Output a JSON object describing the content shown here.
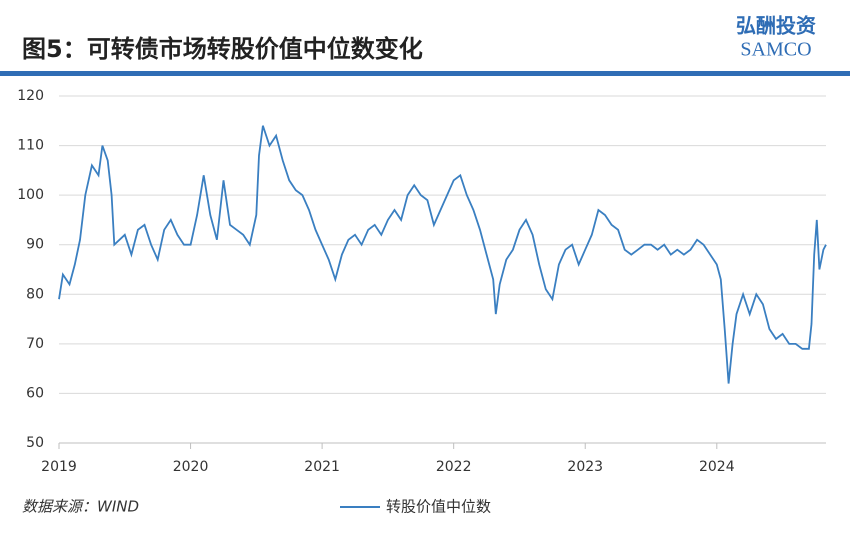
{
  "header": {
    "title": "图5：可转债市场转股价值中位数变化",
    "logo_cn": "弘酬投资",
    "logo_en": "SAMCO"
  },
  "source": "数据来源：WIND",
  "chart_data": {
    "type": "line",
    "x": [
      2019.0,
      2019.03,
      2019.08,
      2019.12,
      2019.16,
      2019.2,
      2019.25,
      2019.3,
      2019.33,
      2019.37,
      2019.4,
      2019.42,
      2019.5,
      2019.55,
      2019.6,
      2019.65,
      2019.7,
      2019.75,
      2019.8,
      2019.85,
      2019.9,
      2019.95,
      2020.0,
      2020.05,
      2020.1,
      2020.15,
      2020.2,
      2020.25,
      2020.3,
      2020.35,
      2020.4,
      2020.45,
      2020.5,
      2020.52,
      2020.55,
      2020.6,
      2020.65,
      2020.7,
      2020.75,
      2020.8,
      2020.85,
      2020.9,
      2020.95,
      2021.0,
      2021.05,
      2021.1,
      2021.15,
      2021.2,
      2021.25,
      2021.3,
      2021.35,
      2021.4,
      2021.45,
      2021.5,
      2021.55,
      2021.6,
      2021.65,
      2021.7,
      2021.75,
      2021.8,
      2021.85,
      2021.9,
      2021.95,
      2022.0,
      2022.05,
      2022.1,
      2022.15,
      2022.2,
      2022.25,
      2022.3,
      2022.32,
      2022.35,
      2022.4,
      2022.45,
      2022.5,
      2022.55,
      2022.6,
      2022.65,
      2022.7,
      2022.75,
      2022.8,
      2022.85,
      2022.9,
      2022.95,
      2023.0,
      2023.05,
      2023.1,
      2023.15,
      2023.2,
      2023.25,
      2023.3,
      2023.35,
      2023.4,
      2023.45,
      2023.5,
      2023.55,
      2023.6,
      2023.65,
      2023.7,
      2023.75,
      2023.8,
      2023.85,
      2023.9,
      2023.95,
      2024.0,
      2024.03,
      2024.06,
      2024.09,
      2024.12,
      2024.15,
      2024.2,
      2024.25,
      2024.3,
      2024.35,
      2024.4,
      2024.45,
      2024.5,
      2024.55,
      2024.6,
      2024.65,
      2024.7,
      2024.72,
      2024.74,
      2024.76,
      2024.78,
      2024.81,
      2024.83
    ],
    "series": [
      {
        "name": "转股价值中位数",
        "color": "#3a7fc1",
        "values": [
          79,
          84,
          82,
          86,
          91,
          100,
          106,
          104,
          110,
          107,
          100,
          90,
          92,
          88,
          93,
          94,
          90,
          87,
          93,
          95,
          92,
          90,
          90,
          96,
          104,
          96,
          91,
          103,
          94,
          93,
          92,
          90,
          96,
          108,
          114,
          110,
          112,
          107,
          103,
          101,
          100,
          97,
          93,
          90,
          87,
          83,
          88,
          91,
          92,
          90,
          93,
          94,
          92,
          95,
          97,
          95,
          100,
          102,
          100,
          99,
          94,
          97,
          100,
          103,
          104,
          100,
          97,
          93,
          88,
          83,
          76,
          82,
          87,
          89,
          93,
          95,
          92,
          86,
          81,
          79,
          86,
          89,
          90,
          86,
          89,
          92,
          97,
          96,
          94,
          93,
          89,
          88,
          89,
          90,
          90,
          89,
          90,
          88,
          89,
          88,
          89,
          91,
          90,
          88,
          86,
          83,
          73,
          62,
          70,
          76,
          80,
          76,
          80,
          78,
          73,
          71,
          72,
          70,
          70,
          69,
          69,
          74,
          88,
          95,
          85,
          89,
          90
        ]
      }
    ],
    "xlim": [
      2019,
      2024.83
    ],
    "xticks": [
      2019,
      2020,
      2021,
      2022,
      2023,
      2024
    ],
    "ylim": [
      50,
      120
    ],
    "yticks": [
      50,
      60,
      70,
      80,
      90,
      100,
      110,
      120
    ],
    "grid": true
  }
}
